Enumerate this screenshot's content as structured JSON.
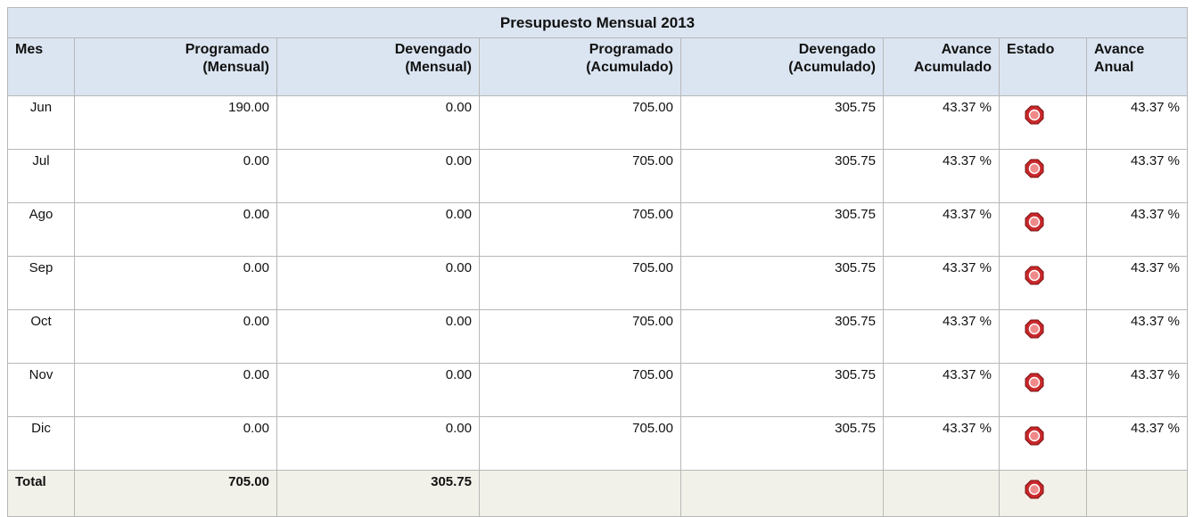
{
  "table": {
    "title": "Presupuesto Mensual 2013",
    "headers": [
      [
        "Mes"
      ],
      [
        "Programado",
        "(Mensual)"
      ],
      [
        "Devengado",
        "(Mensual)"
      ],
      [
        "Programado",
        "(Acumulado)"
      ],
      [
        "Devengado",
        "(Acumulado)"
      ],
      [
        "Avance",
        "Acumulado"
      ],
      [
        "Estado"
      ],
      [
        "Avance",
        "Anual"
      ]
    ],
    "rows": [
      [
        "Jun",
        "190.00",
        "0.00",
        "705.00",
        "305.75",
        "43.37 %",
        "43.37 %"
      ],
      [
        "Jul",
        "0.00",
        "0.00",
        "705.00",
        "305.75",
        "43.37 %",
        "43.37 %"
      ],
      [
        "Ago",
        "0.00",
        "0.00",
        "705.00",
        "305.75",
        "43.37 %",
        "43.37 %"
      ],
      [
        "Sep",
        "0.00",
        "0.00",
        "705.00",
        "305.75",
        "43.37 %",
        "43.37 %"
      ],
      [
        "Oct",
        "0.00",
        "0.00",
        "705.00",
        "305.75",
        "43.37 %",
        "43.37 %"
      ],
      [
        "Nov",
        "0.00",
        "0.00",
        "705.00",
        "305.75",
        "43.37 %",
        "43.37 %"
      ],
      [
        "Dic",
        "0.00",
        "0.00",
        "705.00",
        "305.75",
        "43.37 %",
        "43.37 %"
      ]
    ],
    "total": [
      "Total",
      "705.00",
      "305.75"
    ]
  }
}
